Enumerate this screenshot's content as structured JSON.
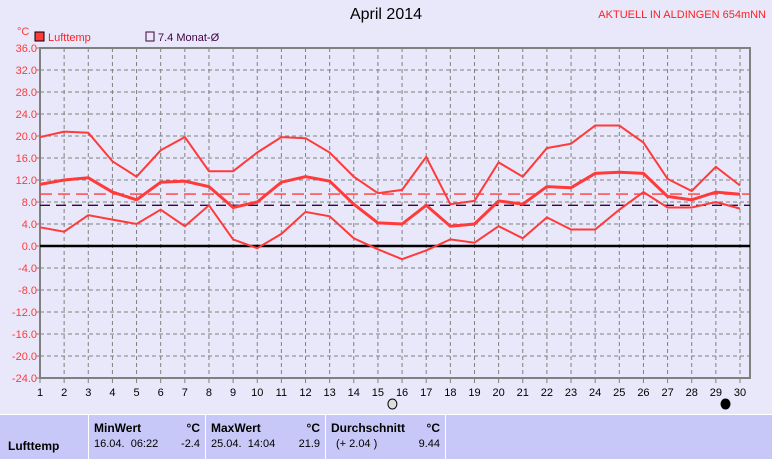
{
  "header": {
    "title": "April 2014",
    "station": "AKTUELL IN ALDINGEN 654mNN"
  },
  "chart_data": {
    "type": "line",
    "title": "April 2014",
    "ylabel": "°C",
    "ylim": [
      -24,
      36
    ],
    "yticks": [
      "36.0",
      "32.0",
      "28.0",
      "24.0",
      "20.0",
      "16.0",
      "12.0",
      "8.0",
      "4.0",
      "0.0",
      "-4.0",
      "-8.0",
      "-12.0",
      "-16.0",
      "-20.0",
      "-24.0"
    ],
    "x": [
      1,
      2,
      3,
      4,
      5,
      6,
      7,
      8,
      9,
      10,
      11,
      12,
      13,
      14,
      15,
      16,
      17,
      18,
      19,
      20,
      21,
      22,
      23,
      24,
      25,
      26,
      27,
      28,
      29,
      30
    ],
    "grid": true,
    "legend": [
      {
        "label": "Lufttemp",
        "color": "#ff3a3a"
      },
      {
        "label": "7.4 Monat-Ø",
        "color": "#400040"
      }
    ],
    "series": [
      {
        "name": "Lufttemp",
        "role": "max",
        "values": [
          19.8,
          20.8,
          20.6,
          15.4,
          12.6,
          17.4,
          19.8,
          13.6,
          13.6,
          17.0,
          19.8,
          19.6,
          17.0,
          12.6,
          9.6,
          10.2,
          16.2,
          7.6,
          8.2,
          15.2,
          12.6,
          17.8,
          18.6,
          21.9,
          21.9,
          18.8,
          12.2,
          10.0,
          14.4,
          11.0
        ]
      },
      {
        "name": "Lufttemp",
        "role": "mean",
        "values": [
          11.2,
          12.0,
          12.4,
          9.8,
          8.4,
          11.6,
          11.8,
          10.8,
          7.0,
          8.0,
          11.6,
          12.6,
          11.8,
          7.6,
          4.2,
          4.0,
          7.4,
          3.6,
          4.0,
          8.2,
          7.6,
          10.8,
          10.6,
          13.2,
          13.4,
          13.2,
          9.0,
          8.4,
          9.8,
          9.4
        ]
      },
      {
        "name": "Lufttemp",
        "role": "min",
        "values": [
          3.4,
          2.6,
          5.6,
          4.8,
          4.0,
          6.6,
          3.6,
          7.4,
          1.2,
          -0.4,
          2.2,
          6.2,
          5.4,
          1.4,
          -0.6,
          -2.4,
          -0.8,
          1.2,
          0.6,
          3.6,
          1.4,
          5.2,
          3.0,
          3.0,
          6.6,
          9.8,
          7.0,
          7.0,
          8.0,
          6.8
        ]
      }
    ],
    "reference_lines": [
      {
        "value": 9.44,
        "color": "#ff3a3a"
      },
      {
        "value": 7.4,
        "color": "#400040"
      }
    ],
    "moon_phases": [
      {
        "day": 15.6,
        "phase": "full-moon"
      },
      {
        "day": 29.4,
        "phase": "new-moon"
      }
    ]
  },
  "stats": {
    "row_label": "Lufttemp",
    "unit": "°C",
    "min": {
      "label": "MinWert",
      "when": "16.04.  06:22",
      "value": "-2.4"
    },
    "max": {
      "label": "MaxWert",
      "when": "25.04.  14:04",
      "value": "21.9"
    },
    "avg": {
      "label": "Durchschnitt",
      "diff": "(+ 2.04 )",
      "value": "9.44"
    }
  }
}
